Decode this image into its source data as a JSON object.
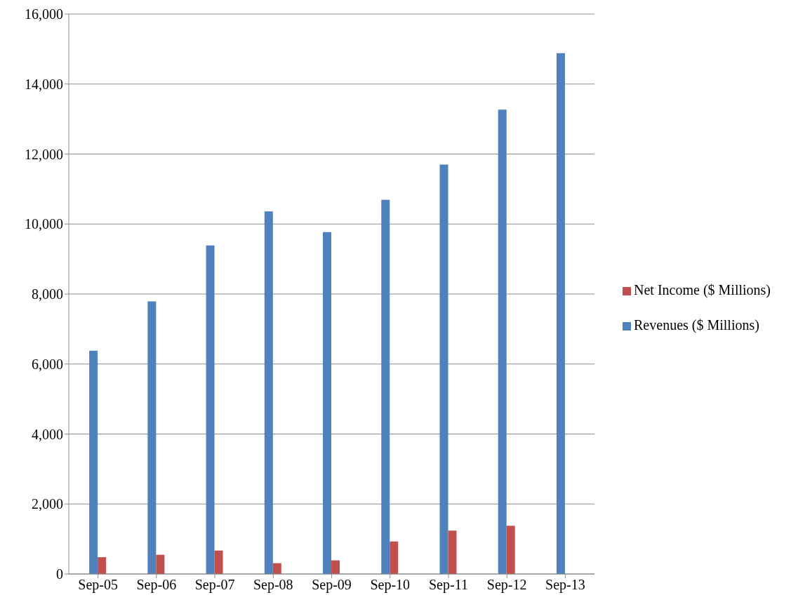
{
  "chart_data": {
    "type": "bar",
    "categories": [
      "Sep-05",
      "Sep-06",
      "Sep-07",
      "Sep-08",
      "Sep-09",
      "Sep-10",
      "Sep-11",
      "Sep-12",
      "Sep-13"
    ],
    "series": [
      {
        "name": "Revenues ($ Millions)",
        "color": "#4f81bd",
        "values": [
          6380,
          7790,
          9390,
          10360,
          9770,
          10690,
          11700,
          13270,
          14880
        ]
      },
      {
        "name": "Net Income ($ Millions)",
        "color": "#c0504d",
        "values": [
          480,
          550,
          670,
          310,
          390,
          930,
          1240,
          1380,
          null
        ]
      }
    ],
    "ylim": [
      0,
      16000
    ],
    "yticks": [
      {
        "value": 0,
        "label": "0"
      },
      {
        "value": 2000,
        "label": "2,000"
      },
      {
        "value": 4000,
        "label": "4,000"
      },
      {
        "value": 6000,
        "label": "6,000"
      },
      {
        "value": 8000,
        "label": "8,000"
      },
      {
        "value": 10000,
        "label": "10,000"
      },
      {
        "value": 12000,
        "label": "12,000"
      },
      {
        "value": 14000,
        "label": "14,000"
      },
      {
        "value": 16000,
        "label": "16,000"
      }
    ],
    "grid": "y",
    "legend": "right"
  }
}
